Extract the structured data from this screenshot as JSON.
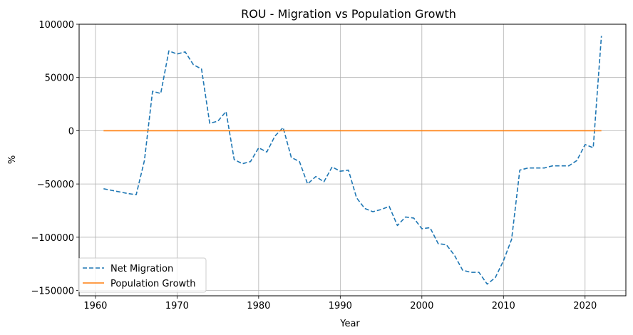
{
  "chart_data": {
    "type": "line",
    "title": "ROU - Migration vs Population Growth",
    "xlabel": "Year",
    "ylabel": "%",
    "xlim": [
      1958,
      2025
    ],
    "ylim": [
      -155000,
      100000
    ],
    "xticks": [
      1960,
      1970,
      1980,
      1990,
      2000,
      2010,
      2020
    ],
    "yticks": [
      100000,
      50000,
      0,
      -50000,
      -100000,
      -150000
    ],
    "ytick_labels": [
      "100000",
      "50000",
      "0",
      "−50000",
      "−100000",
      "−150000"
    ],
    "grid": true,
    "legend_position": "lower-left",
    "x": [
      1961,
      1962,
      1963,
      1964,
      1965,
      1966,
      1967,
      1968,
      1969,
      1970,
      1971,
      1972,
      1973,
      1974,
      1975,
      1976,
      1977,
      1978,
      1979,
      1980,
      1981,
      1982,
      1983,
      1984,
      1985,
      1986,
      1987,
      1988,
      1989,
      1990,
      1991,
      1992,
      1993,
      1994,
      1995,
      1996,
      1997,
      1998,
      1999,
      2000,
      2001,
      2002,
      2003,
      2004,
      2005,
      2006,
      2007,
      2008,
      2009,
      2010,
      2011,
      2012,
      2013,
      2014,
      2015,
      2016,
      2017,
      2018,
      2019,
      2020,
      2021,
      2022
    ],
    "series": [
      {
        "name": "Net Migration",
        "color": "#1f77b4",
        "style": "dashed",
        "values": [
          -54500,
          -56000,
          -57500,
          -59000,
          -60000,
          -28000,
          37000,
          35000,
          75000,
          72000,
          74000,
          62000,
          58000,
          7000,
          9000,
          18000,
          -27000,
          -31000,
          -29000,
          -16000,
          -20000,
          -5000,
          3000,
          -25000,
          -29000,
          -50000,
          -43000,
          -48000,
          -34000,
          -38000,
          -37000,
          -63000,
          -73000,
          -76000,
          -74000,
          -71000,
          -89000,
          -81000,
          -82000,
          -92000,
          -91000,
          -106000,
          -107000,
          -117000,
          -131000,
          -133000,
          -133000,
          -144000,
          -138000,
          -122000,
          -102000,
          -37000,
          -35000,
          -35000,
          -35000,
          -33000,
          -33000,
          -33000,
          -28000,
          -13000,
          -16000,
          89000
        ]
      },
      {
        "name": "Population Growth",
        "color": "#ff7f0e",
        "style": "solid",
        "values": [
          0.79,
          0.59,
          0.59,
          0.6,
          0.59,
          0.64,
          3.03,
          1.81,
          1.24,
          1.23,
          1.12,
          0.91,
          0.89,
          0.98,
          0.93,
          0.9,
          0.87,
          0.87,
          0.88,
          0.77,
          0.57,
          0.35,
          0.27,
          0.44,
          0.37,
          0.42,
          0.43,
          0.47,
          0.5,
          0.1,
          -0.38,
          -0.7,
          -0.35,
          -0.31,
          -0.33,
          -0.24,
          -0.31,
          -0.18,
          -0.13,
          -0.12,
          -0.25,
          -1.32,
          -0.18,
          -0.28,
          -0.3,
          -0.34,
          -0.36,
          -0.4,
          -0.37,
          -0.74,
          -0.62,
          -0.41,
          -0.38,
          -0.4,
          -0.53,
          -0.52,
          -0.57,
          -0.57,
          -0.64,
          -0.6,
          -1.05,
          -0.97
        ]
      }
    ]
  }
}
